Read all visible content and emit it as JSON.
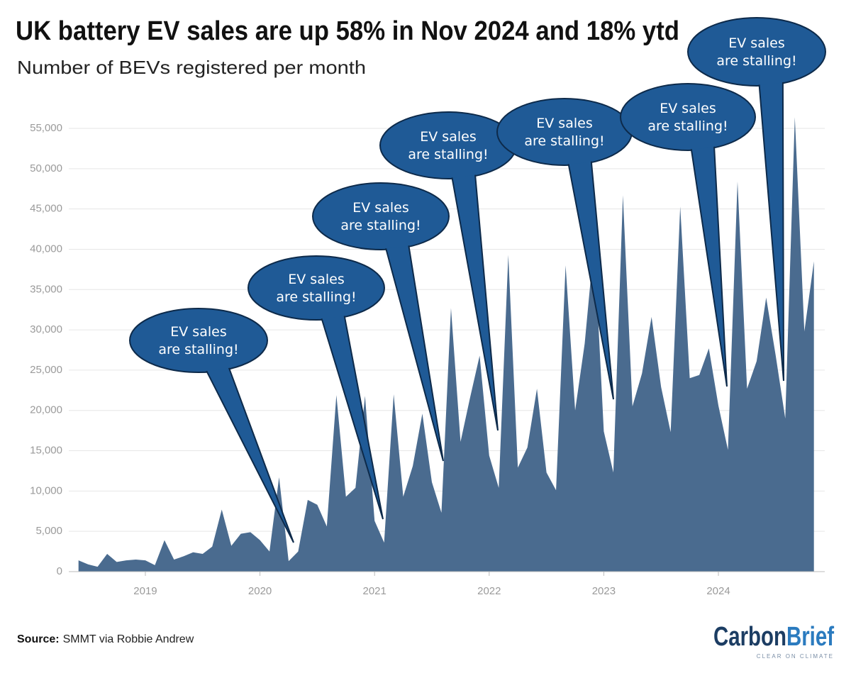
{
  "chart_data": {
    "type": "area",
    "title": "UK battery EV sales are up 58% in Nov 2024 and 18% ytd",
    "subtitle": "Number of BEVs registered per month",
    "source_label": "Source:",
    "source": "SMMT via Robbie Andrew",
    "logo": [
      "Carbon",
      "Brief"
    ],
    "logo_tagline": "CLEAR ON CLIMATE",
    "color": "#4a6b8f",
    "grid": true,
    "annotations": [
      [
        "EV sales",
        "are stalling!"
      ],
      [
        "EV sales",
        "are stalling!"
      ],
      [
        "EV sales",
        "are stalling!"
      ],
      [
        "EV sales",
        "are stalling!"
      ],
      [
        "EV sales",
        "are stalling!"
      ],
      [
        "EV sales",
        "are stalling!"
      ],
      [
        "EV sales",
        "are stalling!"
      ]
    ],
    "x": [
      2018.4167,
      2018.5,
      2018.5833,
      2018.6667,
      2018.75,
      2018.8333,
      2018.9167,
      2019.0,
      2019.0833,
      2019.1667,
      2019.25,
      2019.3333,
      2019.4167,
      2019.5,
      2019.5833,
      2019.6667,
      2019.75,
      2019.8333,
      2019.9167,
      2020.0,
      2020.0833,
      2020.1667,
      2020.25,
      2020.3333,
      2020.4167,
      2020.5,
      2020.5833,
      2020.6667,
      2020.75,
      2020.8333,
      2020.9167,
      2021.0,
      2021.0833,
      2021.1667,
      2021.25,
      2021.3333,
      2021.4167,
      2021.5,
      2021.5833,
      2021.6667,
      2021.75,
      2021.8333,
      2021.9167,
      2022.0,
      2022.0833,
      2022.1667,
      2022.25,
      2022.3333,
      2022.4167,
      2022.5,
      2022.5833,
      2022.6667,
      2022.75,
      2022.8333,
      2022.9167,
      2023.0,
      2023.0833,
      2023.1667,
      2023.25,
      2023.3333,
      2023.4167,
      2023.5,
      2023.5833,
      2023.6667,
      2023.75,
      2023.8333,
      2023.9167,
      2024.0,
      2024.0833,
      2024.1667,
      2024.25,
      2024.3333,
      2024.4167,
      2024.5,
      2024.5833,
      2024.6667,
      2024.75,
      2024.8333
    ],
    "values": [
      1400,
      900,
      600,
      2200,
      1200,
      1400,
      1500,
      1400,
      800,
      3900,
      1500,
      1900,
      2400,
      2200,
      3100,
      7700,
      3200,
      4700,
      4900,
      3900,
      2500,
      11700,
      1300,
      2500,
      8900,
      8300,
      5600,
      21900,
      9300,
      10400,
      21800,
      6300,
      3600,
      22000,
      9300,
      13100,
      19600,
      11100,
      7300,
      32700,
      16100,
      21600,
      26800,
      14400,
      10400,
      39300,
      12900,
      15400,
      22700,
      12300,
      10100,
      38000,
      20000,
      28300,
      41000,
      17400,
      12300,
      46700,
      20500,
      24600,
      31600,
      22900,
      17300,
      45300,
      24000,
      24400,
      27700,
      20600,
      15100,
      48400,
      22700,
      26100,
      34000,
      26800,
      19000,
      56400,
      29800,
      38500
    ],
    "xlim": [
      2018.4167,
      2024.8333
    ],
    "xticks": [
      2019,
      2020,
      2021,
      2022,
      2023,
      2024
    ],
    "ylim": [
      0,
      56500
    ],
    "yticks": [
      0,
      {
        "value": 5000,
        "label": "5,000"
      },
      {
        "value": 10000,
        "label": "10,000"
      },
      {
        "value": 15000,
        "label": "15,000"
      },
      {
        "value": 20000,
        "label": "20,000"
      },
      {
        "value": 25000,
        "label": "25,000"
      },
      {
        "value": 30000,
        "label": "30,000"
      },
      {
        "value": 35000,
        "label": "35,000"
      },
      {
        "value": 40000,
        "label": "40,000"
      },
      {
        "value": 45000,
        "label": "45,000"
      },
      {
        "value": 50000,
        "label": "50,000"
      },
      {
        "value": 55000,
        "label": "55,000"
      }
    ]
  }
}
